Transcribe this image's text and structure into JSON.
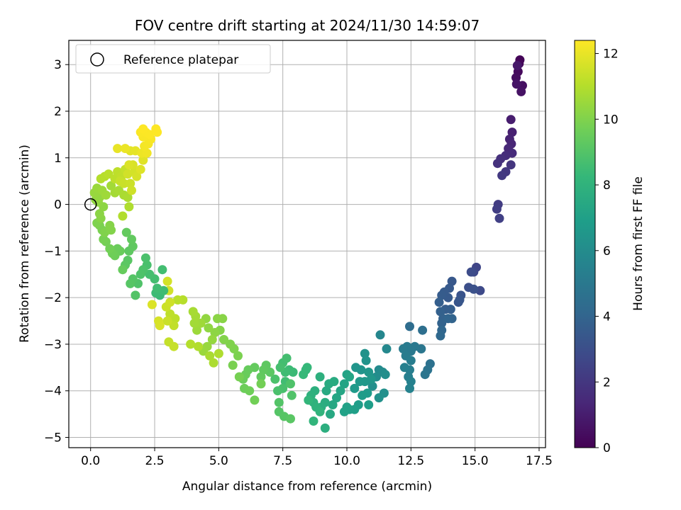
{
  "chart_data": {
    "type": "scatter",
    "title": "FOV centre drift starting at 2024/11/30 14:59:07",
    "xlabel": "Angular distance from reference (arcmin)",
    "ylabel": "Rotation from reference (arcmin)",
    "xlim": [
      -0.85,
      17.75
    ],
    "ylim": [
      -5.22,
      3.52
    ],
    "xticks": [
      0.0,
      2.5,
      5.0,
      7.5,
      10.0,
      12.5,
      15.0,
      17.5
    ],
    "xtick_labels": [
      "0.0",
      "2.5",
      "5.0",
      "7.5",
      "10.0",
      "12.5",
      "15.0",
      "17.5"
    ],
    "yticks": [
      3,
      2,
      1,
      0,
      -1,
      -2,
      -3,
      -4,
      -5
    ],
    "ytick_labels": [
      "3",
      "2",
      "1",
      "0",
      "−1",
      "−2",
      "−3",
      "−4",
      "−5"
    ],
    "grid": true,
    "legend": {
      "position": "top-left",
      "entries": [
        "Reference platepar"
      ]
    },
    "reference_point": {
      "x": 0.0,
      "y": 0.0,
      "marker": "open-circle"
    },
    "colorbar": {
      "label": "Hours from first FF file",
      "colormap": "viridis",
      "range": [
        0,
        12.4
      ],
      "ticks": [
        0,
        2,
        4,
        6,
        8,
        10,
        12
      ],
      "tick_labels": [
        "0",
        "2",
        "4",
        "6",
        "8",
        "10",
        "12"
      ]
    },
    "colormap_stops": [
      "#440154",
      "#482878",
      "#3e4989",
      "#31688e",
      "#26828e",
      "#1f9e89",
      "#35b779",
      "#6ece58",
      "#b5de2b",
      "#fde725"
    ],
    "points_xyt": [
      [
        16.75,
        3.1,
        0.1
      ],
      [
        16.72,
        3.02,
        0.2
      ],
      [
        16.68,
        2.85,
        0.3
      ],
      [
        16.6,
        2.72,
        0.4
      ],
      [
        16.85,
        2.55,
        0.5
      ],
      [
        16.8,
        2.42,
        0.6
      ],
      [
        16.62,
        2.58,
        0.7
      ],
      [
        16.65,
        2.98,
        0.8
      ],
      [
        16.4,
        1.82,
        1.0
      ],
      [
        16.45,
        1.55,
        1.1
      ],
      [
        16.35,
        1.4,
        1.2
      ],
      [
        16.42,
        1.3,
        1.3
      ],
      [
        16.3,
        1.2,
        1.4
      ],
      [
        16.45,
        1.1,
        1.5
      ],
      [
        16.2,
        1.05,
        1.6
      ],
      [
        16.0,
        0.98,
        1.7
      ],
      [
        15.88,
        0.88,
        1.8
      ],
      [
        16.4,
        0.85,
        1.9
      ],
      [
        16.2,
        0.7,
        2.0
      ],
      [
        16.05,
        0.62,
        2.1
      ],
      [
        15.9,
        0.0,
        2.2
      ],
      [
        15.85,
        -0.1,
        2.3
      ],
      [
        15.95,
        -0.3,
        2.4
      ],
      [
        15.05,
        -1.35,
        2.6
      ],
      [
        14.95,
        -1.45,
        2.7
      ],
      [
        15.2,
        -1.85,
        2.8
      ],
      [
        14.85,
        -1.45,
        2.9
      ],
      [
        14.75,
        -1.78,
        3.0
      ],
      [
        14.95,
        -1.82,
        3.1
      ],
      [
        14.45,
        -1.95,
        3.2
      ],
      [
        14.35,
        -2.1,
        3.3
      ],
      [
        14.4,
        -2.05,
        3.35
      ],
      [
        14.1,
        -1.65,
        3.4
      ],
      [
        14.0,
        -1.8,
        3.45
      ],
      [
        13.95,
        -2.0,
        3.5
      ],
      [
        13.8,
        -1.88,
        3.55
      ],
      [
        13.7,
        -1.95,
        3.6
      ],
      [
        13.85,
        -2.25,
        3.65
      ],
      [
        14.05,
        -2.25,
        3.7
      ],
      [
        13.6,
        -2.1,
        3.75
      ],
      [
        13.65,
        -2.3,
        3.8
      ],
      [
        13.75,
        -2.45,
        3.85
      ],
      [
        13.7,
        -2.55,
        3.9
      ],
      [
        14.1,
        -2.45,
        3.95
      ],
      [
        13.95,
        -2.45,
        4.0
      ],
      [
        13.7,
        -2.7,
        4.1
      ],
      [
        13.65,
        -2.82,
        4.2
      ],
      [
        12.45,
        -2.62,
        4.4
      ],
      [
        12.95,
        -2.7,
        4.5
      ],
      [
        13.25,
        -3.42,
        4.6
      ],
      [
        13.15,
        -3.55,
        4.7
      ],
      [
        13.05,
        -3.65,
        4.8
      ],
      [
        12.9,
        -3.1,
        4.9
      ],
      [
        12.65,
        -3.05,
        5.0
      ],
      [
        12.5,
        -3.15,
        5.05
      ],
      [
        12.35,
        -3.05,
        5.1
      ],
      [
        12.2,
        -3.1,
        5.15
      ],
      [
        12.3,
        -3.25,
        5.2
      ],
      [
        12.5,
        -3.35,
        5.25
      ],
      [
        12.45,
        -3.55,
        5.3
      ],
      [
        12.4,
        -3.7,
        5.35
      ],
      [
        12.25,
        -3.5,
        5.4
      ],
      [
        12.5,
        -3.8,
        5.45
      ],
      [
        12.45,
        -3.95,
        5.5
      ],
      [
        11.3,
        -2.8,
        5.7
      ],
      [
        11.55,
        -3.1,
        5.8
      ],
      [
        11.25,
        -3.55,
        5.9
      ],
      [
        11.4,
        -3.6,
        6.0
      ],
      [
        11.15,
        -3.7,
        6.05
      ],
      [
        11.5,
        -3.65,
        6.1
      ],
      [
        11.0,
        -3.9,
        6.15
      ],
      [
        11.45,
        -4.05,
        6.2
      ],
      [
        11.25,
        -4.15,
        6.25
      ],
      [
        10.7,
        -3.2,
        6.3
      ],
      [
        10.75,
        -3.35,
        6.35
      ],
      [
        10.55,
        -3.55,
        6.4
      ],
      [
        10.35,
        -3.5,
        6.45
      ],
      [
        10.85,
        -3.6,
        6.5
      ],
      [
        10.95,
        -3.75,
        6.55
      ],
      [
        10.7,
        -3.8,
        6.6
      ],
      [
        10.5,
        -3.8,
        6.65
      ],
      [
        10.3,
        -3.95,
        6.7
      ],
      [
        10.8,
        -4.05,
        6.75
      ],
      [
        10.6,
        -4.1,
        6.8
      ],
      [
        10.45,
        -4.3,
        6.85
      ],
      [
        10.85,
        -4.3,
        6.9
      ],
      [
        10.3,
        -4.4,
        6.95
      ],
      [
        10.1,
        -4.4,
        7.0
      ],
      [
        10.0,
        -4.35,
        7.05
      ],
      [
        9.9,
        -4.45,
        7.1
      ],
      [
        10.0,
        -3.65,
        7.15
      ],
      [
        9.9,
        -3.85,
        7.2
      ],
      [
        10.1,
        -3.7,
        7.25
      ],
      [
        9.75,
        -4.0,
        7.3
      ],
      [
        9.6,
        -4.15,
        7.35
      ],
      [
        9.45,
        -4.3,
        7.4
      ],
      [
        9.35,
        -4.5,
        7.45
      ],
      [
        9.2,
        -4.0,
        7.5
      ],
      [
        9.3,
        -3.85,
        7.55
      ],
      [
        9.5,
        -3.8,
        7.6
      ],
      [
        9.15,
        -4.25,
        7.65
      ],
      [
        9.0,
        -4.35,
        7.7
      ],
      [
        9.15,
        -4.8,
        7.75
      ],
      [
        8.95,
        -3.7,
        7.8
      ],
      [
        8.75,
        -4.0,
        7.85
      ],
      [
        8.6,
        -4.1,
        7.9
      ],
      [
        8.7,
        -4.25,
        7.95
      ],
      [
        8.8,
        -4.35,
        8.0
      ],
      [
        8.95,
        -4.45,
        8.05
      ],
      [
        8.7,
        -4.65,
        8.1
      ],
      [
        8.5,
        -4.2,
        8.15
      ],
      [
        8.4,
        -3.55,
        8.2
      ],
      [
        8.45,
        -3.5,
        8.25
      ],
      [
        8.3,
        -3.65,
        8.3
      ],
      [
        7.9,
        -3.6,
        8.4
      ],
      [
        7.75,
        -3.55,
        8.45
      ],
      [
        7.6,
        -3.6,
        8.5
      ],
      [
        7.6,
        -3.8,
        8.55
      ],
      [
        7.5,
        -3.4,
        8.6
      ],
      [
        7.65,
        -3.3,
        8.65
      ],
      [
        7.4,
        -3.5,
        8.7
      ],
      [
        7.5,
        -3.95,
        8.75
      ],
      [
        7.3,
        -4.0,
        8.8
      ],
      [
        7.2,
        -3.75,
        8.85
      ],
      [
        7.8,
        -3.85,
        8.9
      ],
      [
        7.85,
        -4.1,
        8.95
      ],
      [
        7.35,
        -4.25,
        9.0
      ],
      [
        7.35,
        -4.45,
        9.05
      ],
      [
        7.55,
        -4.55,
        9.1
      ],
      [
        7.8,
        -4.6,
        9.15
      ],
      [
        7.0,
        -3.6,
        9.2
      ],
      [
        6.85,
        -3.45,
        9.25
      ],
      [
        6.75,
        -3.55,
        9.3
      ],
      [
        6.65,
        -3.7,
        9.35
      ],
      [
        6.4,
        -3.5,
        9.4
      ],
      [
        6.15,
        -3.55,
        9.45
      ],
      [
        6.05,
        -3.65,
        9.5
      ],
      [
        5.95,
        -3.75,
        9.55
      ],
      [
        6.0,
        -3.95,
        9.6
      ],
      [
        6.2,
        -4.0,
        9.65
      ],
      [
        6.4,
        -4.2,
        9.7
      ],
      [
        6.65,
        -3.85,
        9.75
      ],
      [
        5.8,
        -3.7,
        9.8
      ],
      [
        5.55,
        -3.45,
        9.85
      ],
      [
        5.75,
        -3.25,
        9.9
      ],
      [
        5.6,
        -3.1,
        9.95
      ],
      [
        5.45,
        -3.0,
        10.0
      ],
      [
        5.2,
        -2.9,
        10.05
      ],
      [
        5.05,
        -2.7,
        10.1
      ],
      [
        5.15,
        -2.45,
        10.15
      ],
      [
        4.95,
        -2.45,
        10.2
      ],
      [
        4.85,
        -2.75,
        10.25
      ],
      [
        4.6,
        -2.65,
        10.3
      ],
      [
        4.5,
        -2.45,
        10.35
      ],
      [
        4.75,
        -2.9,
        10.4
      ],
      [
        4.55,
        -3.05,
        10.45
      ],
      [
        4.4,
        -3.15,
        10.5
      ],
      [
        4.15,
        -2.7,
        10.55
      ],
      [
        4.3,
        -2.55,
        10.6
      ],
      [
        4.05,
        -2.55,
        10.65
      ],
      [
        4.1,
        -2.4,
        10.7
      ],
      [
        4.0,
        -2.3,
        10.75
      ],
      [
        4.65,
        -3.25,
        10.8
      ],
      [
        4.8,
        -3.4,
        10.85
      ],
      [
        5.0,
        -3.2,
        10.9
      ],
      [
        4.2,
        -3.05,
        10.95
      ],
      [
        3.9,
        -3.0,
        11.0
      ],
      [
        3.6,
        -2.05,
        11.05
      ],
      [
        3.4,
        -2.05,
        11.1
      ],
      [
        3.3,
        -2.45,
        11.15
      ],
      [
        3.1,
        -2.35,
        11.2
      ],
      [
        3.25,
        -2.6,
        11.25
      ],
      [
        3.05,
        -2.95,
        11.3
      ],
      [
        3.25,
        -3.05,
        11.35
      ],
      [
        3.0,
        -2.5,
        11.4
      ],
      [
        2.95,
        -2.2,
        11.45
      ],
      [
        3.1,
        -2.1,
        11.5
      ],
      [
        3.05,
        -1.85,
        11.55
      ],
      [
        3.0,
        -1.65,
        11.6
      ],
      [
        2.65,
        -2.5,
        11.65
      ],
      [
        2.7,
        -2.6,
        11.7
      ],
      [
        2.4,
        -2.15,
        11.75
      ],
      [
        2.7,
        -1.95,
        8.4
      ],
      [
        2.55,
        -1.9,
        8.45
      ],
      [
        2.85,
        -1.85,
        8.5
      ],
      [
        2.6,
        -1.8,
        8.55
      ],
      [
        2.8,
        -1.4,
        8.6
      ],
      [
        2.5,
        -1.6,
        8.65
      ],
      [
        2.3,
        -1.5,
        8.7
      ],
      [
        2.2,
        -1.3,
        8.75
      ],
      [
        2.15,
        -1.15,
        8.8
      ],
      [
        2.05,
        -1.4,
        8.85
      ],
      [
        1.95,
        -1.5,
        8.9
      ],
      [
        1.85,
        -1.7,
        8.95
      ],
      [
        1.75,
        -1.95,
        9.0
      ],
      [
        1.65,
        -1.6,
        9.05
      ],
      [
        1.55,
        -1.7,
        9.1
      ],
      [
        1.45,
        -1.2,
        9.15
      ],
      [
        1.35,
        -1.3,
        9.2
      ],
      [
        1.5,
        -1.0,
        9.25
      ],
      [
        1.65,
        -0.9,
        9.3
      ],
      [
        1.6,
        -0.75,
        9.35
      ],
      [
        1.4,
        -0.6,
        9.4
      ],
      [
        1.25,
        -1.4,
        9.45
      ],
      [
        1.15,
        -1.0,
        9.5
      ],
      [
        1.05,
        -0.95,
        9.55
      ],
      [
        0.95,
        -1.1,
        9.6
      ],
      [
        0.85,
        -1.05,
        9.65
      ],
      [
        0.75,
        -0.95,
        9.7
      ],
      [
        0.6,
        -0.8,
        9.75
      ],
      [
        0.5,
        -0.75,
        9.8
      ],
      [
        0.45,
        -0.55,
        9.85
      ],
      [
        0.35,
        -0.45,
        9.9
      ],
      [
        0.25,
        -0.4,
        9.95
      ],
      [
        0.55,
        -0.6,
        10.0
      ],
      [
        0.8,
        -0.55,
        10.05
      ],
      [
        0.75,
        -0.45,
        10.1
      ],
      [
        0.4,
        -0.3,
        10.15
      ],
      [
        0.35,
        -0.2,
        10.2
      ],
      [
        0.5,
        -0.05,
        10.25
      ],
      [
        0.3,
        0.05,
        10.3
      ],
      [
        0.2,
        0.1,
        10.35
      ],
      [
        0.35,
        0.15,
        10.4
      ],
      [
        0.15,
        0.25,
        10.45
      ],
      [
        0.25,
        0.35,
        10.5
      ],
      [
        0.45,
        0.3,
        10.55
      ],
      [
        0.6,
        0.2,
        10.6
      ],
      [
        0.8,
        0.4,
        10.65
      ],
      [
        0.95,
        0.25,
        10.7
      ],
      [
        1.1,
        0.3,
        10.75
      ],
      [
        1.3,
        0.2,
        10.8
      ],
      [
        1.45,
        0.15,
        10.85
      ],
      [
        1.5,
        -0.05,
        10.9
      ],
      [
        1.25,
        -0.25,
        10.95
      ],
      [
        0.4,
        0.55,
        11.0
      ],
      [
        0.55,
        0.6,
        11.05
      ],
      [
        0.7,
        0.65,
        11.1
      ],
      [
        0.95,
        0.55,
        11.15
      ],
      [
        1.05,
        0.7,
        11.2
      ],
      [
        1.2,
        0.6,
        11.25
      ],
      [
        1.35,
        0.75,
        11.3
      ],
      [
        1.15,
        0.5,
        11.35
      ],
      [
        1.3,
        0.45,
        11.4
      ],
      [
        1.55,
        0.45,
        11.45
      ],
      [
        1.6,
        0.3,
        11.5
      ],
      [
        1.45,
        0.65,
        11.55
      ],
      [
        1.7,
        0.7,
        11.6
      ],
      [
        1.8,
        0.6,
        11.65
      ],
      [
        1.65,
        0.85,
        11.7
      ],
      [
        1.5,
        0.85,
        11.75
      ],
      [
        1.95,
        0.75,
        11.8
      ],
      [
        2.05,
        0.95,
        11.85
      ],
      [
        1.55,
        1.15,
        11.9
      ],
      [
        1.75,
        1.15,
        11.95
      ],
      [
        1.05,
        1.2,
        12.0
      ],
      [
        1.35,
        1.2,
        12.05
      ],
      [
        2.0,
        1.1,
        12.1
      ],
      [
        2.2,
        1.1,
        12.15
      ],
      [
        2.1,
        1.25,
        12.2
      ],
      [
        2.25,
        1.3,
        12.25
      ],
      [
        2.35,
        1.4,
        12.3
      ],
      [
        2.05,
        1.45,
        12.32
      ],
      [
        1.95,
        1.55,
        12.34
      ],
      [
        2.15,
        1.55,
        12.36
      ],
      [
        2.3,
        1.5,
        12.38
      ],
      [
        2.05,
        1.62,
        12.4
      ],
      [
        2.55,
        1.62,
        12.4
      ],
      [
        2.6,
        1.55,
        12.4
      ]
    ]
  }
}
